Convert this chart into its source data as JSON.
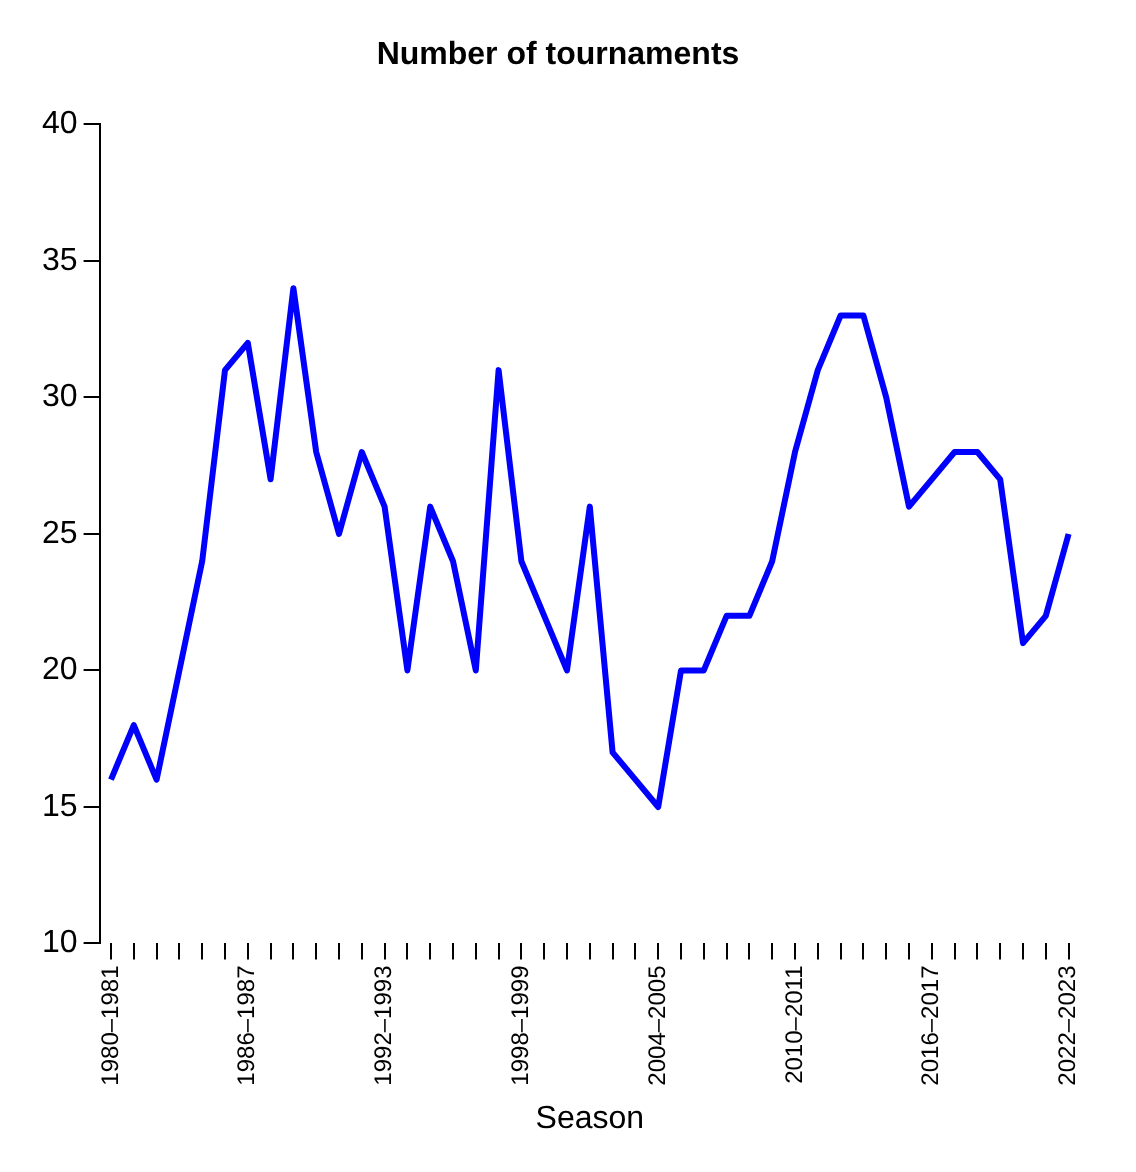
{
  "chart_data": {
    "type": "line",
    "title": "Number of tournaments",
    "xlabel": "Season",
    "categories": [
      "1980–1981",
      null,
      null,
      null,
      null,
      null,
      "1986–1987",
      null,
      null,
      null,
      null,
      null,
      "1992–1993",
      null,
      null,
      null,
      null,
      null,
      "1998–1999",
      null,
      null,
      null,
      null,
      null,
      "2004–2005",
      null,
      null,
      null,
      null,
      null,
      "2010–2011",
      null,
      null,
      null,
      null,
      null,
      "2016–2017",
      null,
      null,
      null,
      null,
      null,
      "2022–2023"
    ],
    "series": [
      {
        "color": "#0000ff",
        "values": [
          16,
          18,
          16,
          20,
          24,
          31,
          32,
          27,
          34,
          28,
          25,
          28,
          26,
          20,
          26,
          24,
          20,
          31,
          24,
          22,
          20,
          26,
          17,
          16,
          15,
          20,
          20,
          22,
          22,
          24,
          28,
          31,
          33,
          33,
          30,
          26,
          27,
          28,
          28,
          27,
          21,
          22,
          25
        ]
      }
    ],
    "ylim": [
      10,
      40
    ],
    "yticks": [
      10,
      15,
      20,
      25,
      30,
      35,
      40
    ],
    "grid": false,
    "legend": false,
    "marker": "none",
    "line_style": "solid"
  }
}
